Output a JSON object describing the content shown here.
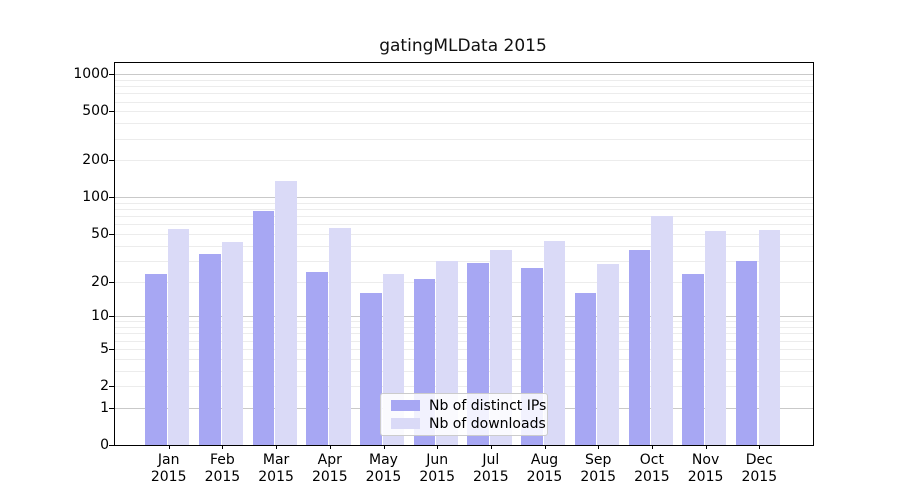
{
  "chart_data": {
    "type": "bar",
    "title": "gatingMLData 2015",
    "categories": [
      "Jan",
      "Feb",
      "Mar",
      "Apr",
      "May",
      "Jun",
      "Jul",
      "Aug",
      "Sep",
      "Oct",
      "Nov",
      "Dec"
    ],
    "category_year": "2015",
    "series": [
      {
        "name": "Nb of distinct IPs",
        "color": "#a7a7f3",
        "values": [
          23,
          34,
          77,
          24,
          16,
          21,
          29,
          26,
          16,
          37,
          23,
          30
        ]
      },
      {
        "name": "Nb of downloads",
        "color": "#dadaf7",
        "values": [
          55,
          43,
          135,
          56,
          23,
          30,
          37,
          44,
          28,
          70,
          53,
          54
        ]
      }
    ],
    "xlabel": "",
    "ylabel": "",
    "yscale": "log10(1+y)",
    "yticks": [
      0,
      1,
      2,
      5,
      10,
      20,
      50,
      100,
      200,
      500,
      1000
    ],
    "ylim": [
      0,
      1233
    ],
    "grid": {
      "major_at": [
        1,
        10,
        100,
        1000
      ],
      "minor_at": [
        2,
        3,
        4,
        5,
        6,
        7,
        8,
        9,
        20,
        30,
        40,
        50,
        60,
        70,
        80,
        90,
        200,
        300,
        400,
        500,
        600,
        700,
        800,
        900
      ],
      "major_color": "#c9c9c9",
      "minor_color": "#ececec"
    },
    "legend_position": "inside-lower-center",
    "axis_color": "#000000",
    "background_color": "#ffffff"
  }
}
